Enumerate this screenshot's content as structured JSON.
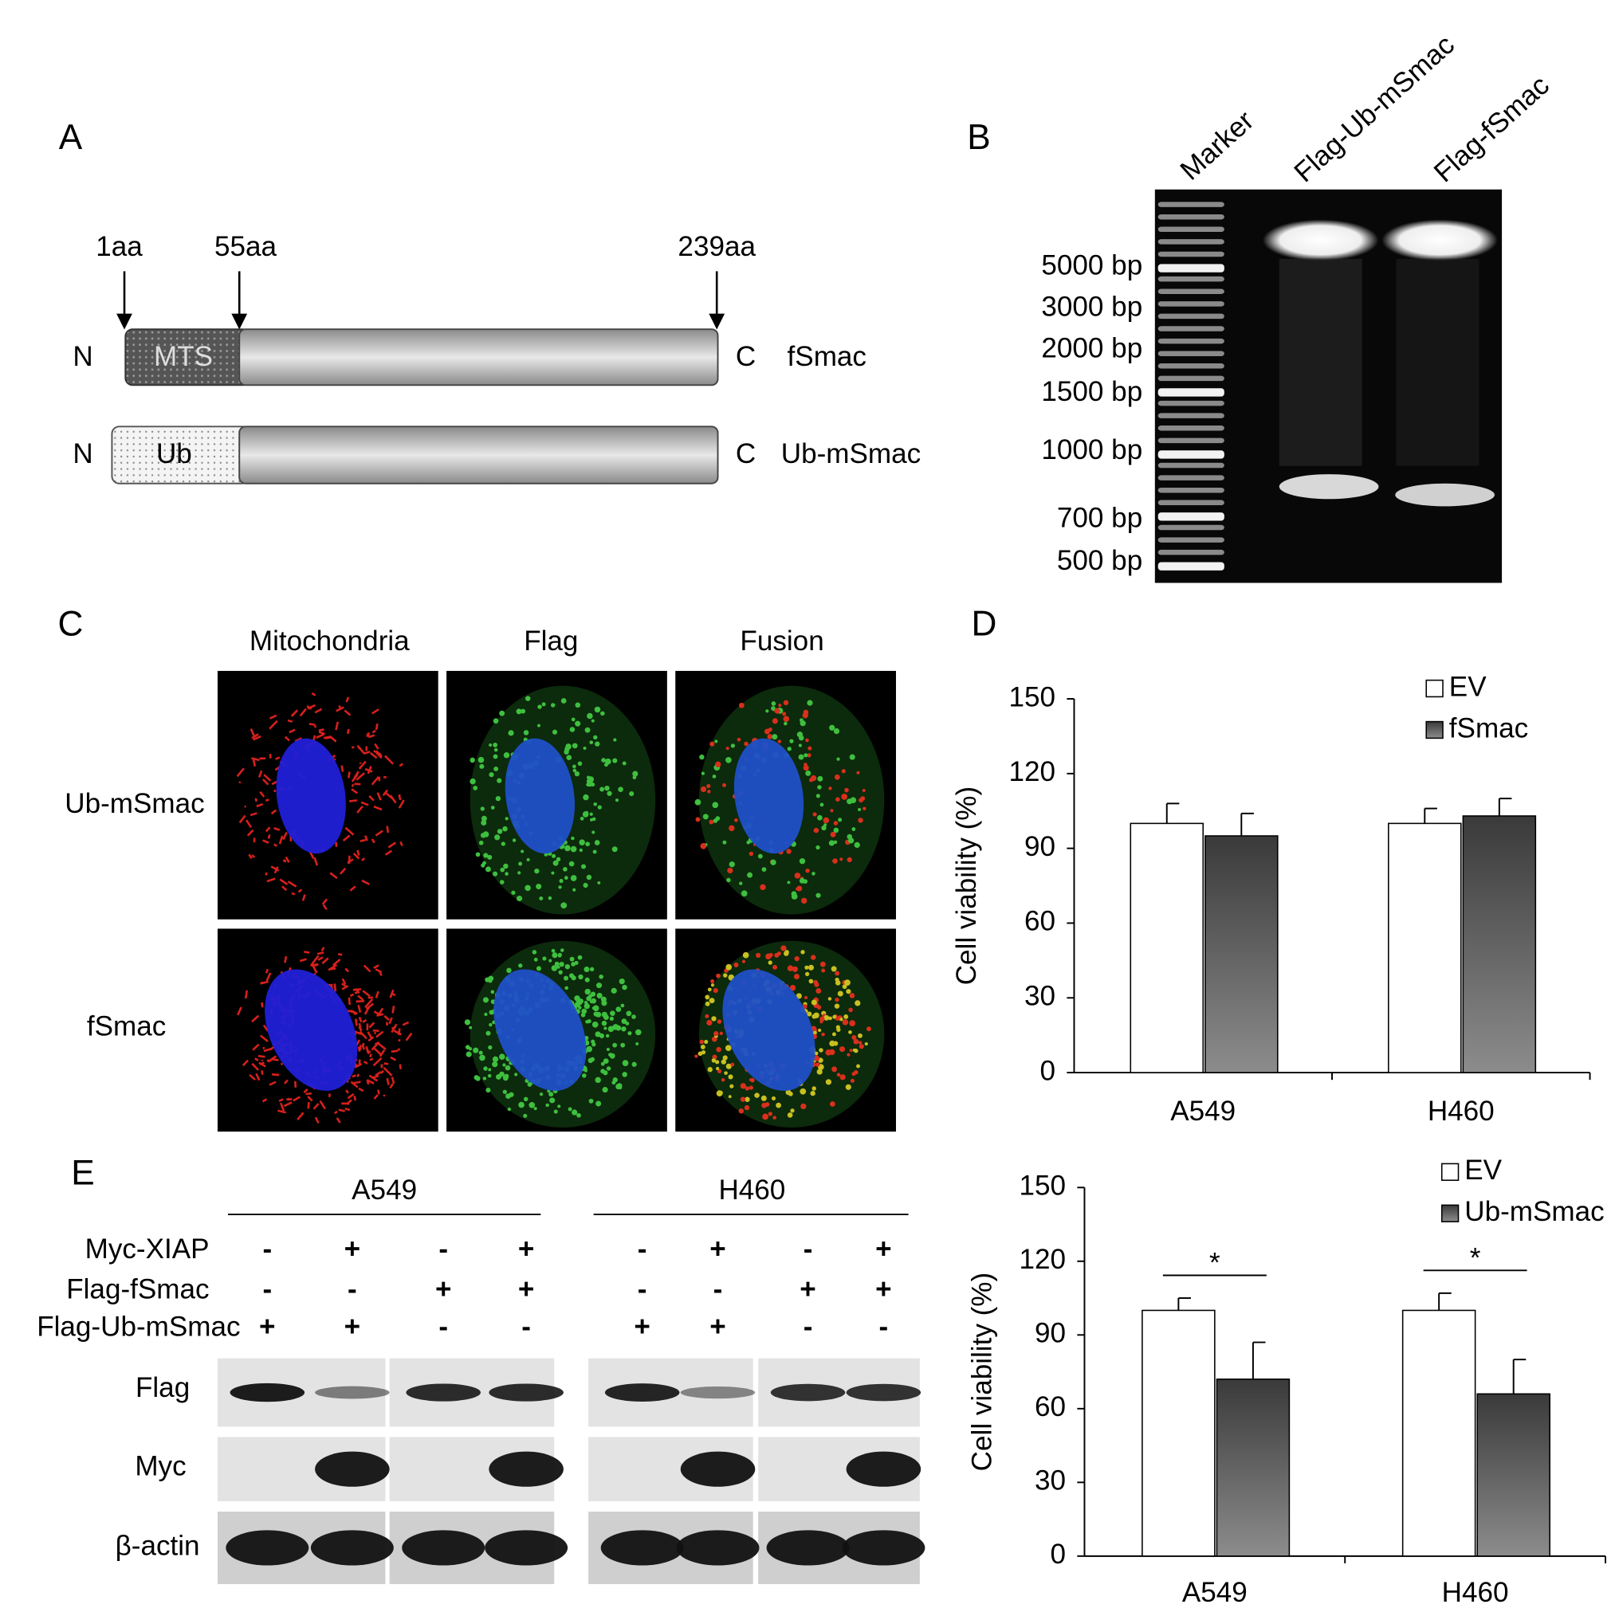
{
  "panels": {
    "A": {
      "label": "A",
      "positions": [
        "1aa",
        "55aa",
        "239aa"
      ],
      "constructs": [
        {
          "n": "N",
          "domain": "MTS",
          "c": "C",
          "name": "fSmac"
        },
        {
          "n": "N",
          "domain": "Ub",
          "c": "C",
          "name": "Ub-mSmac"
        }
      ]
    },
    "B": {
      "label": "B",
      "lanes": [
        "Marker",
        "Flag-Ub-mSmac",
        "Flag-fSmac"
      ],
      "sizes": [
        "5000 bp",
        "3000 bp",
        "2000 bp",
        "1500 bp",
        "1000 bp",
        "700 bp",
        "500 bp"
      ]
    },
    "C": {
      "label": "C",
      "columns": [
        "Mitochondria",
        "Flag",
        "Fusion"
      ],
      "rows": [
        "Ub-mSmac",
        "fSmac"
      ]
    },
    "D": {
      "label": "D"
    },
    "E": {
      "label": "E",
      "groups": [
        "A549",
        "H460"
      ],
      "treatments": [
        {
          "name": "Myc-XIAP",
          "signs": [
            "-",
            "+",
            "-",
            "+",
            "-",
            "+",
            "-",
            "+"
          ]
        },
        {
          "name": "Flag-fSmac",
          "signs": [
            "-",
            "-",
            "+",
            "+",
            "-",
            "-",
            "+",
            "+"
          ]
        },
        {
          "name": "Flag-Ub-mSmac",
          "signs": [
            "+",
            "+",
            "-",
            "-",
            "+",
            "+",
            "-",
            "-"
          ]
        }
      ],
      "blots": [
        "Flag",
        "Myc",
        "β-actin"
      ]
    }
  },
  "chart_data": [
    {
      "type": "bar",
      "y_label": "Cell viability (%)",
      "categories": [
        "A549",
        "H460"
      ],
      "series": [
        {
          "name": "EV",
          "color": "#ffffff",
          "values": [
            100,
            100
          ],
          "errors": [
            8,
            6
          ]
        },
        {
          "name": "fSmac",
          "color": "#8c8c8c",
          "values": [
            95,
            103
          ],
          "errors": [
            9,
            7
          ]
        }
      ],
      "ylim": [
        0,
        150
      ],
      "yticks": [
        0,
        30,
        60,
        90,
        120,
        150
      ],
      "grid": false,
      "legend": "top-right"
    },
    {
      "type": "bar",
      "y_label": "Cell viability (%)",
      "categories": [
        "A549",
        "H460"
      ],
      "series": [
        {
          "name": "EV",
          "color": "#ffffff",
          "values": [
            100,
            100
          ],
          "errors": [
            5,
            7
          ]
        },
        {
          "name": "Ub-mSmac",
          "color": "#8c8c8c",
          "values": [
            72,
            66
          ],
          "errors": [
            15,
            14
          ]
        }
      ],
      "significance": [
        "*",
        "*"
      ],
      "ylim": [
        0,
        150
      ],
      "yticks": [
        0,
        30,
        60,
        90,
        120,
        150
      ],
      "grid": false,
      "legend": "top-right"
    }
  ]
}
